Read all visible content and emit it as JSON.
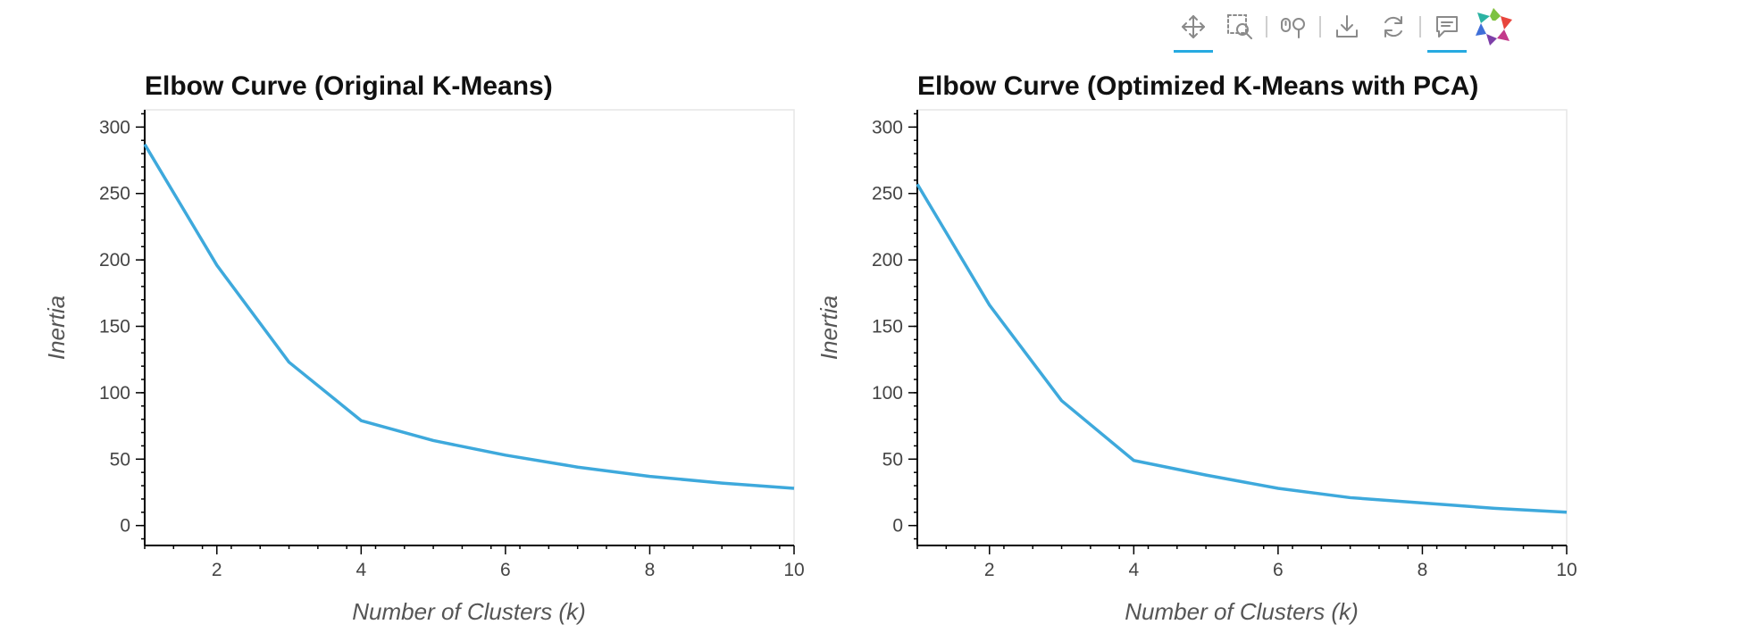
{
  "toolbar": {
    "tools": [
      {
        "name": "pan-tool",
        "icon": "move-arrows-icon",
        "active": true
      },
      {
        "name": "box-zoom-tool",
        "icon": "box-zoom-icon",
        "active": false
      },
      {
        "name": "wheel-zoom-tool",
        "icon": "wheel-zoom-icon",
        "active": false
      },
      {
        "name": "save-tool",
        "icon": "download-icon",
        "active": false
      },
      {
        "name": "reset-tool",
        "icon": "reset-icon",
        "active": false
      },
      {
        "name": "hover-tool",
        "icon": "tooltip-icon",
        "active": true
      }
    ],
    "logo": "bokeh-logo-icon",
    "accent_color": "#26aae1"
  },
  "chart_data": [
    {
      "type": "line",
      "title": "Elbow Curve (Original K-Means)",
      "xlabel": "Number of Clusters (k)",
      "ylabel": "Inertia",
      "x": [
        1,
        2,
        3,
        4,
        5,
        6,
        7,
        8,
        9,
        10
      ],
      "y": [
        287,
        196,
        123,
        79,
        64,
        53,
        44,
        37,
        32,
        28
      ],
      "xlim": [
        1,
        10
      ],
      "ylim": [
        -15,
        313
      ],
      "xticks": [
        2,
        4,
        6,
        8,
        10
      ],
      "yticks": [
        0,
        50,
        100,
        150,
        200,
        250,
        300
      ],
      "line_color": "#3ea9dc",
      "grid": false
    },
    {
      "type": "line",
      "title": "Elbow Curve (Optimized K-Means with PCA)",
      "xlabel": "Number of Clusters (k)",
      "ylabel": "Inertia",
      "x": [
        1,
        2,
        3,
        4,
        5,
        6,
        7,
        8,
        9,
        10
      ],
      "y": [
        257,
        166,
        94,
        49,
        38,
        28,
        21,
        17,
        13,
        10
      ],
      "xlim": [
        1,
        10
      ],
      "ylim": [
        -15,
        313
      ],
      "xticks": [
        2,
        4,
        6,
        8,
        10
      ],
      "yticks": [
        0,
        50,
        100,
        150,
        200,
        250,
        300
      ],
      "line_color": "#3ea9dc",
      "grid": false
    }
  ]
}
